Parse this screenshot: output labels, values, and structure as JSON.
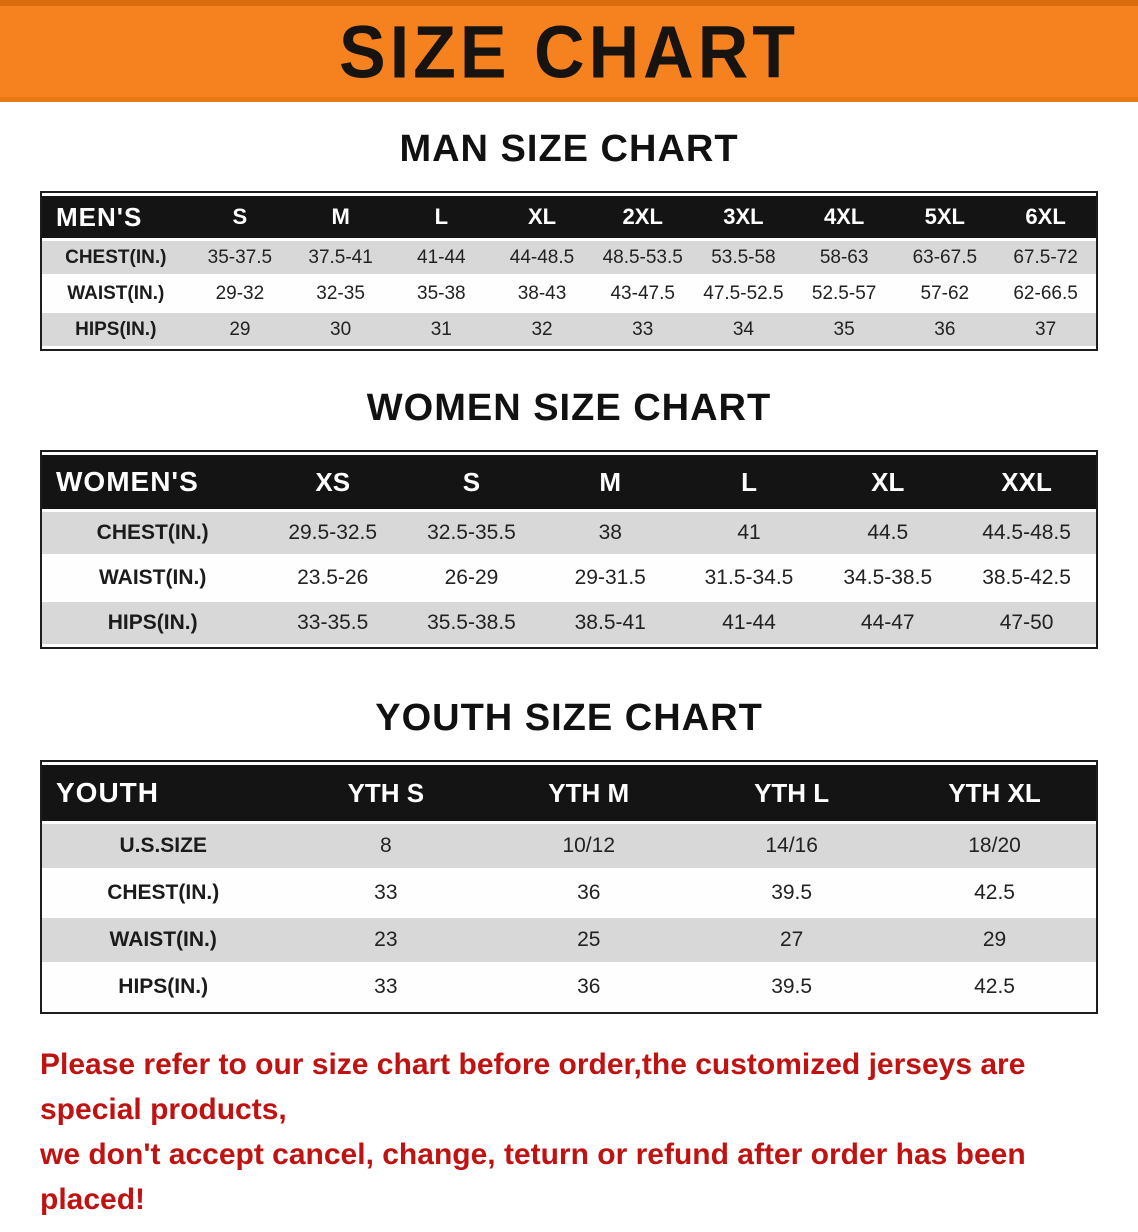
{
  "banner": {
    "title": "SIZE CHART",
    "bg_color": "#f5821f",
    "text_color": "#161310"
  },
  "sections": [
    {
      "heading": "MAN SIZE CHART",
      "table": {
        "header": [
          "MEN'S",
          "S",
          "M",
          "L",
          "XL",
          "2XL",
          "3XL",
          "4XL",
          "5XL",
          "6XL"
        ],
        "rows": [
          [
            "CHEST(IN.)",
            "35-37.5",
            "37.5-41",
            "41-44",
            "44-48.5",
            "48.5-53.5",
            "53.5-58",
            "58-63",
            "63-67.5",
            "67.5-72"
          ],
          [
            "WAIST(IN.)",
            "29-32",
            "32-35",
            "35-38",
            "38-43",
            "43-47.5",
            "47.5-52.5",
            "52.5-57",
            "57-62",
            "62-66.5"
          ],
          [
            "HIPS(IN.)",
            "29",
            "30",
            "31",
            "32",
            "33",
            "34",
            "35",
            "36",
            "37"
          ]
        ]
      }
    },
    {
      "heading": "WOMEN SIZE CHART",
      "table": {
        "header": [
          "WOMEN'S",
          "XS",
          "S",
          "M",
          "L",
          "XL",
          "XXL"
        ],
        "rows": [
          [
            "CHEST(IN.)",
            "29.5-32.5",
            "32.5-35.5",
            "38",
            "41",
            "44.5",
            "44.5-48.5"
          ],
          [
            "WAIST(IN.)",
            "23.5-26",
            "26-29",
            "29-31.5",
            "31.5-34.5",
            "34.5-38.5",
            "38.5-42.5"
          ],
          [
            "HIPS(IN.)",
            "33-35.5",
            "35.5-38.5",
            "38.5-41",
            "41-44",
            "44-47",
            "47-50"
          ]
        ]
      }
    },
    {
      "heading": "YOUTH SIZE CHART",
      "table": {
        "header": [
          "YOUTH",
          "YTH S",
          "YTH M",
          "YTH L",
          "YTH XL"
        ],
        "rows": [
          [
            "U.S.SIZE",
            "8",
            "10/12",
            "14/16",
            "18/20"
          ],
          [
            "CHEST(IN.)",
            "33",
            "36",
            "39.5",
            "42.5"
          ],
          [
            "WAIST(IN.)",
            "23",
            "25",
            "27",
            "29"
          ],
          [
            "HIPS(IN.)",
            "33",
            "36",
            "39.5",
            "42.5"
          ]
        ]
      }
    }
  ],
  "footer": {
    "line1": "Please refer to our size chart before order,the customized jerseys are special products,",
    "line2": "we don't accept cancel, change, teturn or refund after order has been placed!",
    "text_color": "#c11212"
  }
}
